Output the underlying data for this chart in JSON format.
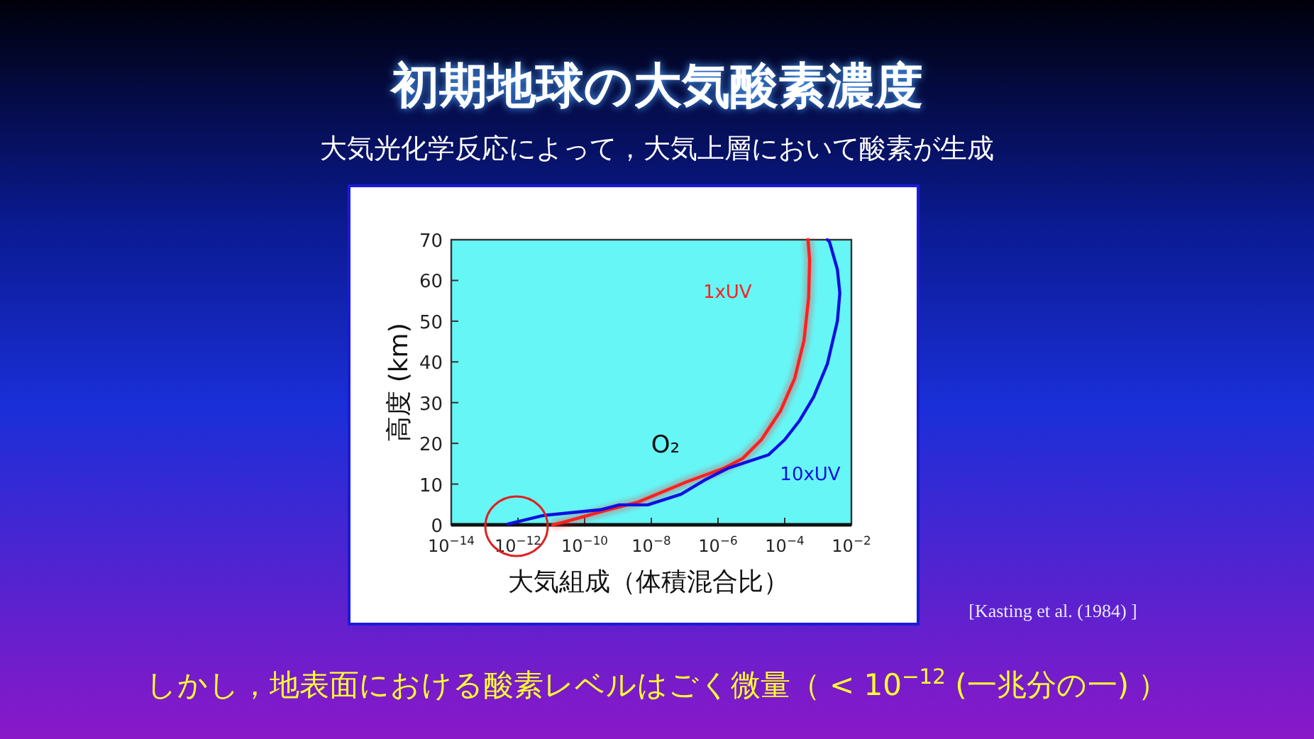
{
  "chart_data": {
    "type": "line",
    "title": "初期地球の大気酸素濃度",
    "subtitle": "大気光化学反応によって，大気上層において酸素が生成",
    "xlabel": "大気組成（体積混合比）",
    "ylabel": "高度 (km)",
    "log": "x",
    "xlim": [
      1e-14,
      0.01
    ],
    "ylim": [
      0,
      70
    ],
    "xticks": [
      {
        "value": 1e-14,
        "label": "10$^{−14}$"
      },
      {
        "value": 1e-12,
        "label": "10$^{−12}$"
      },
      {
        "value": 1e-10,
        "label": "10$^{−10}$"
      },
      {
        "value": 1e-08,
        "label": "10$^{−8}$"
      },
      {
        "value": 1e-06,
        "label": "10$^{−6}$"
      },
      {
        "value": 0.0001,
        "label": "10$^{−4}$"
      },
      {
        "value": 0.01,
        "label": "10$^{−2}$"
      }
    ],
    "yticks": [
      0,
      10,
      20,
      30,
      40,
      50,
      60,
      70
    ],
    "series": [
      {
        "name": "1xUV",
        "color": "#ff2020",
        "x": [
          1.1e-11,
          2.2e-11,
          4.2e-10,
          4.1e-09,
          1.1e-07,
          1.5e-06,
          5.5e-06,
          2e-05,
          7.4e-05,
          0.0002,
          0.00038,
          0.00052,
          0.00056,
          0.0005
        ],
        "values": [
          0,
          0.6,
          3.5,
          5.6,
          10.5,
          13.9,
          16.3,
          20.9,
          27.9,
          36,
          45.3,
          55.7,
          65,
          70
        ]
      },
      {
        "name": "10xUV",
        "color": "#1010e0",
        "x": [
          5e-13,
          5.9e-12,
          3e-10,
          1.1e-09,
          7.8e-09,
          7.8e-08,
          4e-07,
          2e-06,
          3.3e-05,
          0.0001,
          0.00028,
          0.00074,
          0.0019,
          0.0038,
          0.0045,
          0.0038,
          0.0022,
          0.0019
        ],
        "values": [
          0.2,
          2.3,
          3.7,
          4.9,
          4.9,
          7.5,
          11,
          13.9,
          17.2,
          20.9,
          25.6,
          31.4,
          39.5,
          50,
          56.9,
          62.7,
          69.5,
          70
        ]
      }
    ],
    "annotations": [
      "O₂",
      "[Kasting et al. (1984) ]",
      "しかし，地表面における酸素レベルはごく微量（ < 10$^{−12}$ (一兆分の一) ）"
    ]
  }
}
